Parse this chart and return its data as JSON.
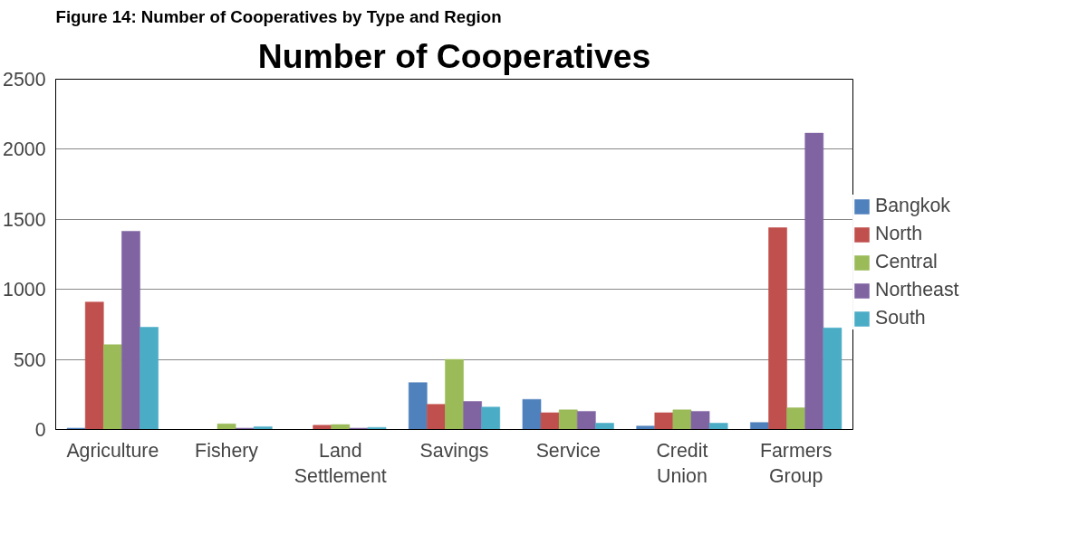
{
  "chart_data": {
    "type": "bar",
    "title": "Number of Cooperatives",
    "annotations": [
      "Figure 14: Number of Cooperatives by Type and Region"
    ],
    "categories": [
      "Agriculture",
      "Fishery",
      "Land Settlement",
      "Savings",
      "Service",
      "Credit Union",
      "Farmers Group"
    ],
    "series": [
      {
        "name": "Bangkok",
        "color": "#4f81bd",
        "values": [
          10,
          0,
          0,
          335,
          215,
          25,
          50
        ]
      },
      {
        "name": "North",
        "color": "#c0504d",
        "values": [
          910,
          0,
          30,
          180,
          120,
          120,
          1440
        ]
      },
      {
        "name": "Central",
        "color": "#9bbb59",
        "values": [
          605,
          40,
          35,
          500,
          140,
          140,
          155
        ]
      },
      {
        "name": "Northeast",
        "color": "#8064a2",
        "values": [
          1415,
          10,
          10,
          200,
          130,
          130,
          2115
        ]
      },
      {
        "name": "South",
        "color": "#4bacc6",
        "values": [
          730,
          20,
          15,
          160,
          45,
          45,
          725
        ]
      }
    ],
    "ylim": [
      0,
      2500
    ],
    "yticks": [
      0,
      500,
      1000,
      1500,
      2000,
      2500
    ],
    "grid": "y",
    "legend": "right"
  }
}
